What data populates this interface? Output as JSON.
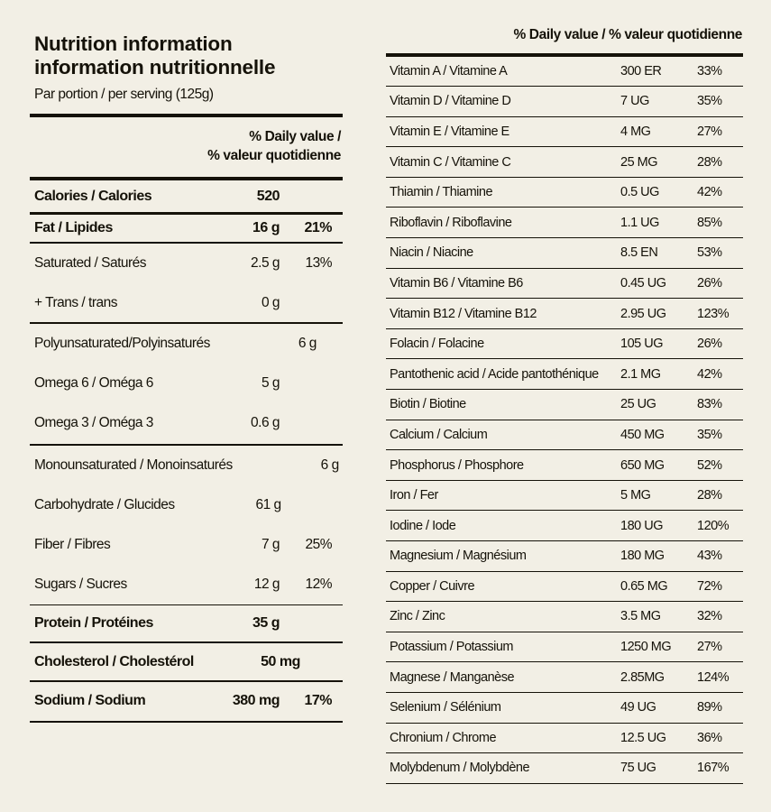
{
  "page": {
    "background_color": "#f2efe5",
    "text_color": "#151209"
  },
  "left_panel": {
    "title_line1": "Nutrition information",
    "title_line2": "information nutritionnelle",
    "serving": "Par portion / per serving (125g)",
    "dv_header_line1": "% Daily value /",
    "dv_header_line2": "% valeur quotidienne",
    "rows": [
      {
        "label": "Calories / Calories",
        "amount": "520",
        "dv": "",
        "style": "bold",
        "rule_after": "medium"
      },
      {
        "label": "Fat / Lipides",
        "amount": "16 g",
        "dv": "21%",
        "style": "bold",
        "rule_after": "medium2"
      },
      {
        "label": "Saturated / Saturés",
        "amount": "2.5 g",
        "dv": "13%",
        "style": "normal",
        "rule_after": "none"
      },
      {
        "label": "+ Trans / trans",
        "amount": "0 g",
        "dv": "",
        "style": "normal",
        "rule_after": "thin"
      },
      {
        "label": "Polyunsaturated/Polyinsaturés",
        "amount": "6 g",
        "dv": "",
        "style": "normal",
        "rule_after": "none"
      },
      {
        "label": "Omega 6 / Oméga 6",
        "amount": "5 g",
        "dv": "",
        "style": "normal",
        "rule_after": "none"
      },
      {
        "label": "Omega 3 / Oméga 3",
        "amount": "0.6 g",
        "dv": "",
        "style": "normal",
        "rule_after": "thin"
      },
      {
        "label": "Monounsaturated / Monoinsaturés",
        "amount": "6 g",
        "dv": "",
        "style": "normal",
        "rule_after": "none"
      },
      {
        "label": "Carbohydrate / Glucides",
        "amount": "61 g",
        "dv": "",
        "style": "normal",
        "rule_after": "none"
      },
      {
        "label": "Fiber / Fibres",
        "amount": "7 g",
        "dv": "25%",
        "style": "normal",
        "rule_after": "none"
      },
      {
        "label": "Sugars / Sucres",
        "amount": "12 g",
        "dv": "12%",
        "style": "normal",
        "rule_after": "thin"
      },
      {
        "label": "Protein / Protéines",
        "amount": "35 g",
        "dv": "",
        "style": "bold",
        "rule_after": "thin"
      },
      {
        "label": "Cholesterol / Cholestérol",
        "amount": "50 mg",
        "dv": "",
        "style": "bold",
        "rule_after": "thin"
      },
      {
        "label": "Sodium / Sodium",
        "amount": "380 mg",
        "dv": "17%",
        "style": "bold",
        "rule_after": "thin"
      }
    ]
  },
  "right_panel": {
    "dv_header": "% Daily value / % valeur quotidienne",
    "rows": [
      {
        "label": "Vitamin A / Vitamine A",
        "amount": "300 ER",
        "dv": "33%"
      },
      {
        "label": "Vitamin D / Vitamine D",
        "amount": "7 UG",
        "dv": "35%"
      },
      {
        "label": "Vitamin E / Vitamine E",
        "amount": "4 MG",
        "dv": "27%"
      },
      {
        "label": "Vitamin C / Vitamine C",
        "amount": "25 MG",
        "dv": "28%"
      },
      {
        "label": "Thiamin / Thiamine",
        "amount": "0.5 UG",
        "dv": "42%"
      },
      {
        "label": "Riboflavin / Riboflavine",
        "amount": "1.1 UG",
        "dv": "85%"
      },
      {
        "label": "Niacin / Niacine",
        "amount": "8.5 EN",
        "dv": "53%"
      },
      {
        "label": "Vitamin B6 / Vitamine B6",
        "amount": "0.45 UG",
        "dv": "26%"
      },
      {
        "label": "Vitamin B12 / Vitamine B12",
        "amount": "2.95 UG",
        "dv": "123%"
      },
      {
        "label": "Folacin / Folacine",
        "amount": "105 UG",
        "dv": "26%"
      },
      {
        "label": "Pantothenic acid / Acide pantothénique",
        "amount": "2.1 MG",
        "dv": "42%"
      },
      {
        "label": "Biotin / Biotine",
        "amount": "25 UG",
        "dv": "83%"
      },
      {
        "label": "Calcium / Calcium",
        "amount": "450 MG",
        "dv": "35%"
      },
      {
        "label": "Phosphorus / Phosphore",
        "amount": "650 MG",
        "dv": "52%"
      },
      {
        "label": "Iron / Fer",
        "amount": "5 MG",
        "dv": "28%"
      },
      {
        "label": "Iodine / Iode",
        "amount": "180 UG",
        "dv": "120%"
      },
      {
        "label": "Magnesium / Magnésium",
        "amount": "180 MG",
        "dv": "43%"
      },
      {
        "label": "Copper / Cuivre",
        "amount": "0.65 MG",
        "dv": "72%"
      },
      {
        "label": "Zinc / Zinc",
        "amount": "3.5 MG",
        "dv": "32%"
      },
      {
        "label": "Potassium / Potassium",
        "amount": "1250 MG",
        "dv": "27%"
      },
      {
        "label": "Magnese / Manganèse",
        "amount": "2.85MG",
        "dv": "124%"
      },
      {
        "label": "Selenium / Sélénium",
        "amount": "49 UG",
        "dv": "89%"
      },
      {
        "label": "Chronium / Chrome",
        "amount": "12.5 UG",
        "dv": "36%"
      },
      {
        "label": "Molybdenum / Molybdène",
        "amount": "75 UG",
        "dv": "167%"
      }
    ]
  }
}
